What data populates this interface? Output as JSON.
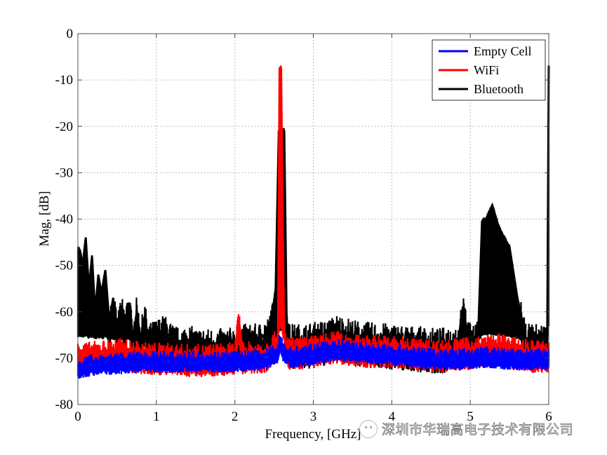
{
  "chart_data": {
    "type": "line",
    "title": "",
    "xlabel": "Frequency, [GHz]",
    "ylabel": "Mag, [dB]",
    "xlim": [
      0,
      6
    ],
    "ylim": [
      -80,
      0
    ],
    "x_ticks": [
      "0",
      "1",
      "2",
      "3",
      "4",
      "5",
      "6"
    ],
    "y_ticks": [
      "0",
      "-10",
      "-20",
      "-30",
      "-40",
      "-50",
      "-60",
      "-70",
      "-80"
    ],
    "grid": true,
    "legend_position": "upper right",
    "legend": [
      "Empty Cell",
      "WiFi",
      "Bluetooth"
    ],
    "series": [
      {
        "name": "Empty Cell",
        "color": "#0000ff",
        "x": [
          0,
          0.1,
          0.3,
          0.5,
          0.8,
          1.0,
          1.5,
          2.0,
          2.4,
          2.55,
          2.58,
          2.62,
          2.7,
          3.0,
          3.3,
          3.6,
          4.0,
          4.3,
          4.6,
          4.9,
          5.2,
          5.5,
          5.8,
          6.0
        ],
        "values": [
          -71.5,
          -71,
          -70.5,
          -70.5,
          -70,
          -70,
          -70,
          -70,
          -69.5,
          -68,
          -65.5,
          -68,
          -69,
          -68.5,
          -67.5,
          -68,
          -68.5,
          -69,
          -69.5,
          -69.5,
          -69,
          -69.5,
          -69.5,
          -69.5
        ]
      },
      {
        "name": "WiFi",
        "color": "#ff0000",
        "x": [
          0,
          0.1,
          0.3,
          0.5,
          0.8,
          1.0,
          1.5,
          2.0,
          2.04,
          2.06,
          2.1,
          2.4,
          2.55,
          2.57,
          2.59,
          2.61,
          2.63,
          2.7,
          3.0,
          3.3,
          3.6,
          4.0,
          4.3,
          4.6,
          4.9,
          5.2,
          5.4,
          5.6,
          5.8,
          6.0
        ],
        "values": [
          -68,
          -69,
          -68.5,
          -68,
          -69,
          -69,
          -69.5,
          -69,
          -63,
          -63,
          -69,
          -68.5,
          -66,
          -7.5,
          -7.5,
          -43,
          -66,
          -68,
          -67.5,
          -66.5,
          -67.5,
          -67.5,
          -68,
          -68.5,
          -68,
          -67.5,
          -67,
          -68,
          -68.5,
          -68.5
        ]
      },
      {
        "name": "Bluetooth",
        "color": "#000000",
        "x": [
          0,
          0.03,
          0.06,
          0.1,
          0.14,
          0.18,
          0.22,
          0.26,
          0.3,
          0.35,
          0.4,
          0.45,
          0.5,
          0.55,
          0.6,
          0.65,
          0.7,
          0.75,
          0.8,
          0.85,
          0.9,
          1.0,
          1.1,
          1.2,
          1.3,
          1.4,
          1.5,
          1.7,
          1.9,
          2.1,
          2.3,
          2.45,
          2.52,
          2.56,
          2.6,
          2.63,
          2.66,
          2.7,
          2.9,
          3.2,
          3.3,
          3.6,
          4.0,
          4.3,
          4.6,
          4.85,
          4.9,
          4.95,
          5.0,
          5.1,
          5.15,
          5.2,
          5.28,
          5.35,
          5.4,
          5.5,
          5.6,
          5.65,
          5.7,
          5.8,
          5.9,
          5.98,
          6.0
        ],
        "values": [
          -46,
          -47,
          -50,
          -44,
          -55,
          -48,
          -60,
          -52,
          -56,
          -51,
          -62,
          -57,
          -65,
          -59,
          -63,
          -58,
          -66,
          -60,
          -66,
          -61,
          -66,
          -65,
          -64,
          -66,
          -67,
          -66,
          -67,
          -67,
          -67,
          -66,
          -66,
          -64,
          -55,
          -21,
          -20.5,
          -21,
          -62,
          -66,
          -66,
          -65,
          -64,
          -65.5,
          -66,
          -66.5,
          -67,
          -66,
          -59.5,
          -63,
          -66,
          -65,
          -40.5,
          -40,
          -37,
          -41,
          -43,
          -46,
          -57,
          -61,
          -66,
          -66,
          -66,
          -66,
          -7
        ]
      }
    ]
  },
  "watermark": {
    "icon": "wechat-icon",
    "text": "深圳市华瑞高电子技术有限公司"
  }
}
